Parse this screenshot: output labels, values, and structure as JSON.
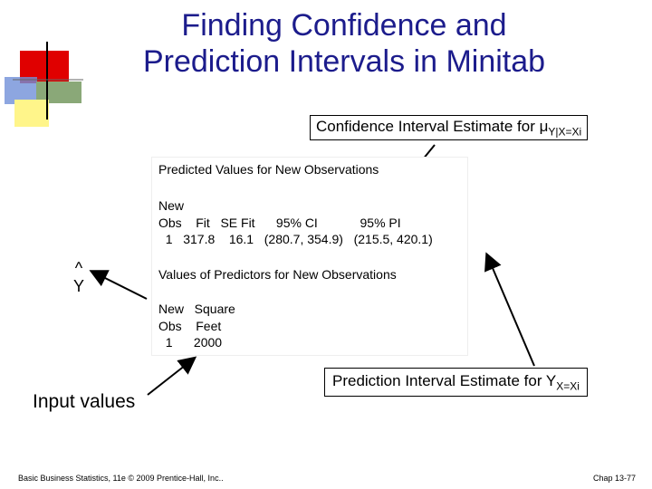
{
  "title": [
    "Finding Confidence and",
    "Prediction Intervals in Minitab"
  ],
  "ci_callout": {
    "text": "Confidence Interval Estimate for μ",
    "subscript": "Y|X=Xi"
  },
  "output": {
    "predicted_heading": "Predicted Values for New Observations",
    "predicted_lines": [
      "New",
      "Obs    Fit   SE Fit      95% CI            95% PI",
      "  1   317.8    16.1   (280.7, 354.9)   (215.5, 420.1)"
    ],
    "predictors_heading": "Values of Predictors for New Observations",
    "predictors_lines": [
      "New   Square",
      "Obs    Feet",
      "  1      2000"
    ]
  },
  "yhat": {
    "hat": "^",
    "letter": "Y"
  },
  "pi_callout": {
    "text": "Prediction Interval Estimate for Y",
    "subscript": "X=Xi"
  },
  "input_label": "Input values",
  "footer": {
    "left": "Basic Business Statistics, 11e © 2009 Prentice-Hall, Inc..",
    "right": "Chap 13-77"
  }
}
